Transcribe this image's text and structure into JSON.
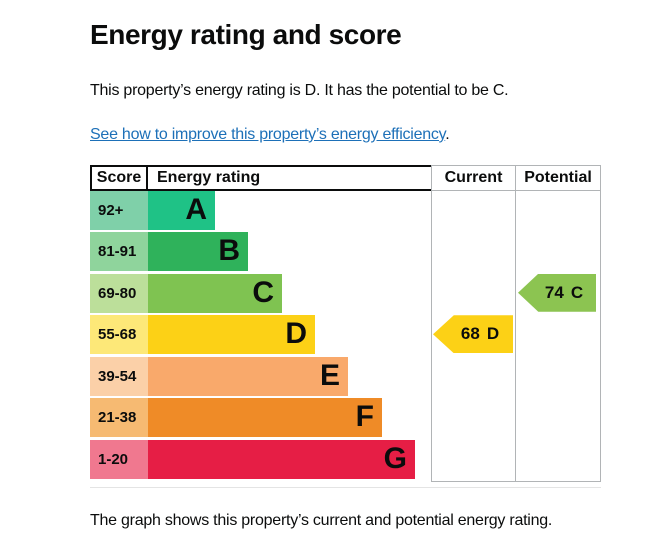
{
  "page": {
    "title": "Energy rating and score",
    "intro": "This property’s energy rating is D. It has the potential to be C.",
    "link": {
      "text": "See how to improve this property’s energy efficiency",
      "suffix": "."
    },
    "caption": "The graph shows this property’s current and potential energy rating."
  },
  "chart_data": {
    "type": "bar",
    "subtype": "epc-energy-rating-graph",
    "title": "Energy rating and score",
    "columns": {
      "score": "Score",
      "rating": "Energy rating",
      "current": "Current",
      "potential": "Potential"
    },
    "bands": [
      {
        "letter": "A",
        "score_range": "92+",
        "color": "#1fc286",
        "tint_color": "#7fd0a9"
      },
      {
        "letter": "B",
        "score_range": "81-91",
        "color": "#2fb25b",
        "tint_color": "#8fd49c"
      },
      {
        "letter": "C",
        "score_range": "69-80",
        "color": "#7fc351",
        "tint_color": "#bcdf9a"
      },
      {
        "letter": "D",
        "score_range": "55-68",
        "color": "#fcd116",
        "tint_color": "#fde878"
      },
      {
        "letter": "E",
        "score_range": "39-54",
        "color": "#f9a96b",
        "tint_color": "#fbd0a8"
      },
      {
        "letter": "F",
        "score_range": "21-38",
        "color": "#ef8b27",
        "tint_color": "#f6ba72"
      },
      {
        "letter": "G",
        "score_range": "1-20",
        "color": "#e61e45",
        "tint_color": "#f0788f"
      }
    ],
    "current": {
      "score": 68,
      "band": "D",
      "band_index": 3,
      "arrow_color": "#fcd116"
    },
    "potential": {
      "score": 74,
      "band": "C",
      "band_index": 2,
      "arrow_color": "#8cc451"
    }
  },
  "colors": {
    "text": "#0b0c0c",
    "link": "#1d70b8",
    "grid": "#b1b4b6"
  }
}
